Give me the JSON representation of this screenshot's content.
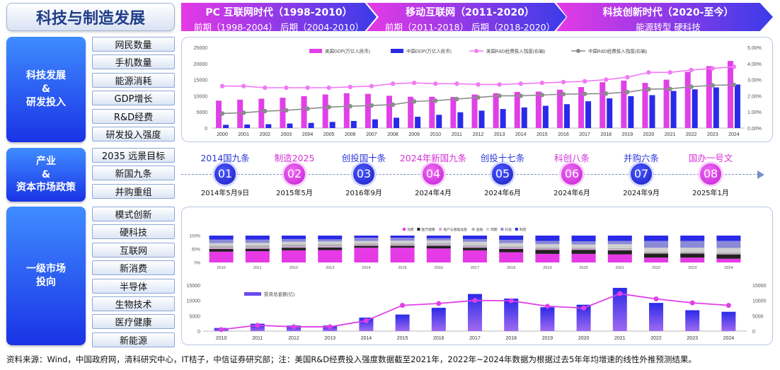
{
  "title": "科技与制造发展",
  "eras": [
    {
      "title": "PC 互联网时代（1998-2010）",
      "sub": [
        "前期（1998-2004）",
        "后期（2004-2010）"
      ]
    },
    {
      "title": "移动互联网（2011-2020）",
      "sub": [
        "前期（2011-2018）",
        "后期（2018-2020）"
      ]
    },
    {
      "title": "科技创新时代（2020-至今）",
      "sub": [
        "能源转型",
        "硬科技"
      ]
    }
  ],
  "sections": [
    "科技发展\n&\n研发投入",
    "产业\n&\n资本市场政策",
    "一级市场\n投向"
  ],
  "tags1": [
    "网民数量",
    "手机数量",
    "能源消耗",
    "GDP增长",
    "R&D经费",
    "研发投入强度"
  ],
  "tags2": [
    "2035 远景目标",
    "新国九条",
    "并购重组"
  ],
  "tags3": [
    "模式创新",
    "硬科技",
    "互联网",
    "新消费",
    "半导体",
    "生物技术",
    "医疗健康",
    "新能源"
  ],
  "milestones": [
    {
      "name": "2014国九条",
      "num": "01",
      "date": "2014年5月9日",
      "color": "blue"
    },
    {
      "name": "制造2025",
      "num": "02",
      "date": "2015年5月",
      "color": "pink"
    },
    {
      "name": "创投国十条",
      "num": "03",
      "date": "2016年9月",
      "color": "blue"
    },
    {
      "name": "2024年新国九条",
      "num": "04",
      "date": "2024年4月",
      "color": "pink"
    },
    {
      "name": "创投十七条",
      "num": "05",
      "date": "2024年6月",
      "color": "blue"
    },
    {
      "name": "科创八条",
      "num": "06",
      "date": "2024年6月",
      "color": "pink"
    },
    {
      "name": "并购六条",
      "num": "07",
      "date": "2024年9月",
      "color": "blue"
    },
    {
      "name": "国办一号文",
      "num": "08",
      "date": "2025年1月",
      "color": "pink"
    }
  ],
  "footnote": "资料来源：Wind，中国政府网，清科研究中心，IT桔子，中信证券研究部；注：美国R&D经费投入强度数据截至2021年，2022年~2024年数据为根据过去5年年均增速的线性外推预测结果。",
  "colors": {
    "pink": "#e040e8",
    "blue": "#2a2ae8",
    "pinkLine": "#f07af5",
    "grayLine": "#8c8c8c"
  },
  "chart_data": [
    {
      "type": "bar",
      "title": "",
      "categories": [
        "2000",
        "2001",
        "2002",
        "2003",
        "2004",
        "2005",
        "2006",
        "2007",
        "2008",
        "2009",
        "2010",
        "2011",
        "2012",
        "2013",
        "2014",
        "2015",
        "2016",
        "2017",
        "2018",
        "2019",
        "2020",
        "2021",
        "2022",
        "2023",
        "2024"
      ],
      "series": [
        {
          "name": "美国GDP(万亿人民币)",
          "axis": "left",
          "kind": "bar",
          "values": [
            8.5,
            8.8,
            9.1,
            9.4,
            9.9,
            10.4,
            10.8,
            10.6,
            10.0,
            9.7,
            9.7,
            9.6,
            10.4,
            10.8,
            11.2,
            11.3,
            11.9,
            12.7,
            14.2,
            14.7,
            14.0,
            15.0,
            17.4,
            19.2,
            20.8
          ]
        },
        {
          "name": "中国GDP(万亿人民币)",
          "axis": "left",
          "kind": "bar",
          "values": [
            1.0,
            1.1,
            1.2,
            1.4,
            1.6,
            1.9,
            2.2,
            2.7,
            3.2,
            3.5,
            4.1,
            4.9,
            5.4,
            5.9,
            6.4,
            6.9,
            7.4,
            8.3,
            9.2,
            9.9,
            10.2,
            11.5,
            12.0,
            12.6,
            13.5
          ]
        },
        {
          "name": "美国R&D经费投入强度(右轴)",
          "axis": "right",
          "kind": "line",
          "values": [
            2.6,
            2.6,
            2.5,
            2.5,
            2.5,
            2.5,
            2.55,
            2.6,
            2.75,
            2.8,
            2.75,
            2.75,
            2.7,
            2.7,
            2.75,
            2.8,
            2.85,
            2.9,
            3.0,
            3.15,
            3.45,
            3.45,
            3.6,
            3.7,
            3.8
          ]
        },
        {
          "name": "中国R&D经费投入强度(右轴)",
          "axis": "right",
          "kind": "line",
          "values": [
            0.9,
            0.95,
            1.05,
            1.1,
            1.2,
            1.3,
            1.35,
            1.4,
            1.45,
            1.65,
            1.7,
            1.8,
            1.9,
            2.0,
            2.0,
            2.05,
            2.1,
            2.12,
            2.14,
            2.23,
            2.41,
            2.43,
            2.56,
            2.65,
            2.68
          ]
        }
      ],
      "ylim": [
        0,
        25000
      ],
      "yticks": [
        "0",
        "5000",
        "10000",
        "15000",
        "20000",
        "25000"
      ],
      "y2lim": [
        0,
        5
      ],
      "y2ticks": [
        "0.00%",
        "1.00%",
        "2.00%",
        "3.00%",
        "4.00%",
        "5.00%"
      ],
      "legend": "top"
    },
    {
      "type": "bar",
      "stacked": true,
      "percent": true,
      "categories": [
        "2010",
        "2011",
        "2012",
        "2013",
        "2014",
        "2015",
        "2016",
        "2017",
        "2018",
        "2019",
        "2020",
        "2021",
        "2022",
        "2023",
        "2024"
      ],
      "yticks": [
        "0%",
        "50%",
        "100%"
      ],
      "series": [
        {
          "name": "消费",
          "color": "#e53ae6",
          "values": [
            40,
            42,
            45,
            46,
            55,
            55,
            52,
            45,
            38,
            32,
            32,
            30,
            18,
            18,
            14
          ]
        },
        {
          "name": "医疗健康",
          "color": "#222222",
          "values": [
            10,
            9,
            10,
            10,
            7,
            7,
            10,
            10,
            12,
            15,
            15,
            15,
            15,
            15,
            16
          ]
        },
        {
          "name": "地产与基础设施",
          "color": "#d9a0d9",
          "values": [
            4,
            4,
            4,
            4,
            3,
            3,
            4,
            4,
            4,
            3,
            3,
            3,
            2,
            2,
            2
          ]
        },
        {
          "name": "金融",
          "color": "#b0b0b0",
          "values": [
            8,
            8,
            8,
            8,
            6,
            6,
            6,
            6,
            6,
            6,
            5,
            5,
            5,
            5,
            5
          ]
        },
        {
          "name": "周期",
          "color": "#d0d0d0",
          "values": [
            10,
            10,
            10,
            10,
            9,
            10,
            10,
            12,
            12,
            12,
            12,
            15,
            15,
            15,
            17
          ]
        },
        {
          "name": "科技",
          "color": "#8a8ad8",
          "values": [
            13,
            12,
            10,
            8,
            12,
            11,
            8,
            10,
            12,
            12,
            12,
            12,
            25,
            25,
            26
          ]
        },
        {
          "name": "制造",
          "color": "#2a2ae8",
          "values": [
            15,
            15,
            13,
            14,
            8,
            8,
            10,
            13,
            16,
            20,
            21,
            20,
            20,
            20,
            20
          ]
        }
      ]
    },
    {
      "type": "bar",
      "categories": [
        "2010",
        "2011",
        "2012",
        "2013",
        "2014",
        "2015",
        "2016",
        "2017",
        "2018",
        "2019",
        "2020",
        "2021",
        "2022",
        "2023",
        "2024"
      ],
      "series": [
        {
          "name": "投资总金额(亿)",
          "kind": "bar",
          "values": [
            1000,
            2400,
            1800,
            1800,
            4400,
            5400,
            7600,
            12100,
            10600,
            7800,
            8600,
            14100,
            9200,
            6800,
            6300
          ]
        },
        {
          "name": "",
          "kind": "line",
          "axis": "right",
          "values": [
            500,
            1900,
            1400,
            1400,
            3400,
            8400,
            9000,
            10000,
            9900,
            8100,
            7500,
            12200,
            10500,
            9200,
            8400
          ]
        }
      ],
      "ylim": [
        0,
        15000
      ],
      "yticks": [
        "0",
        "5000",
        "10000",
        "15000"
      ],
      "y2lim": [
        0,
        15000
      ],
      "y2ticks": [
        "0",
        "5000",
        "10000",
        "15000"
      ]
    }
  ]
}
